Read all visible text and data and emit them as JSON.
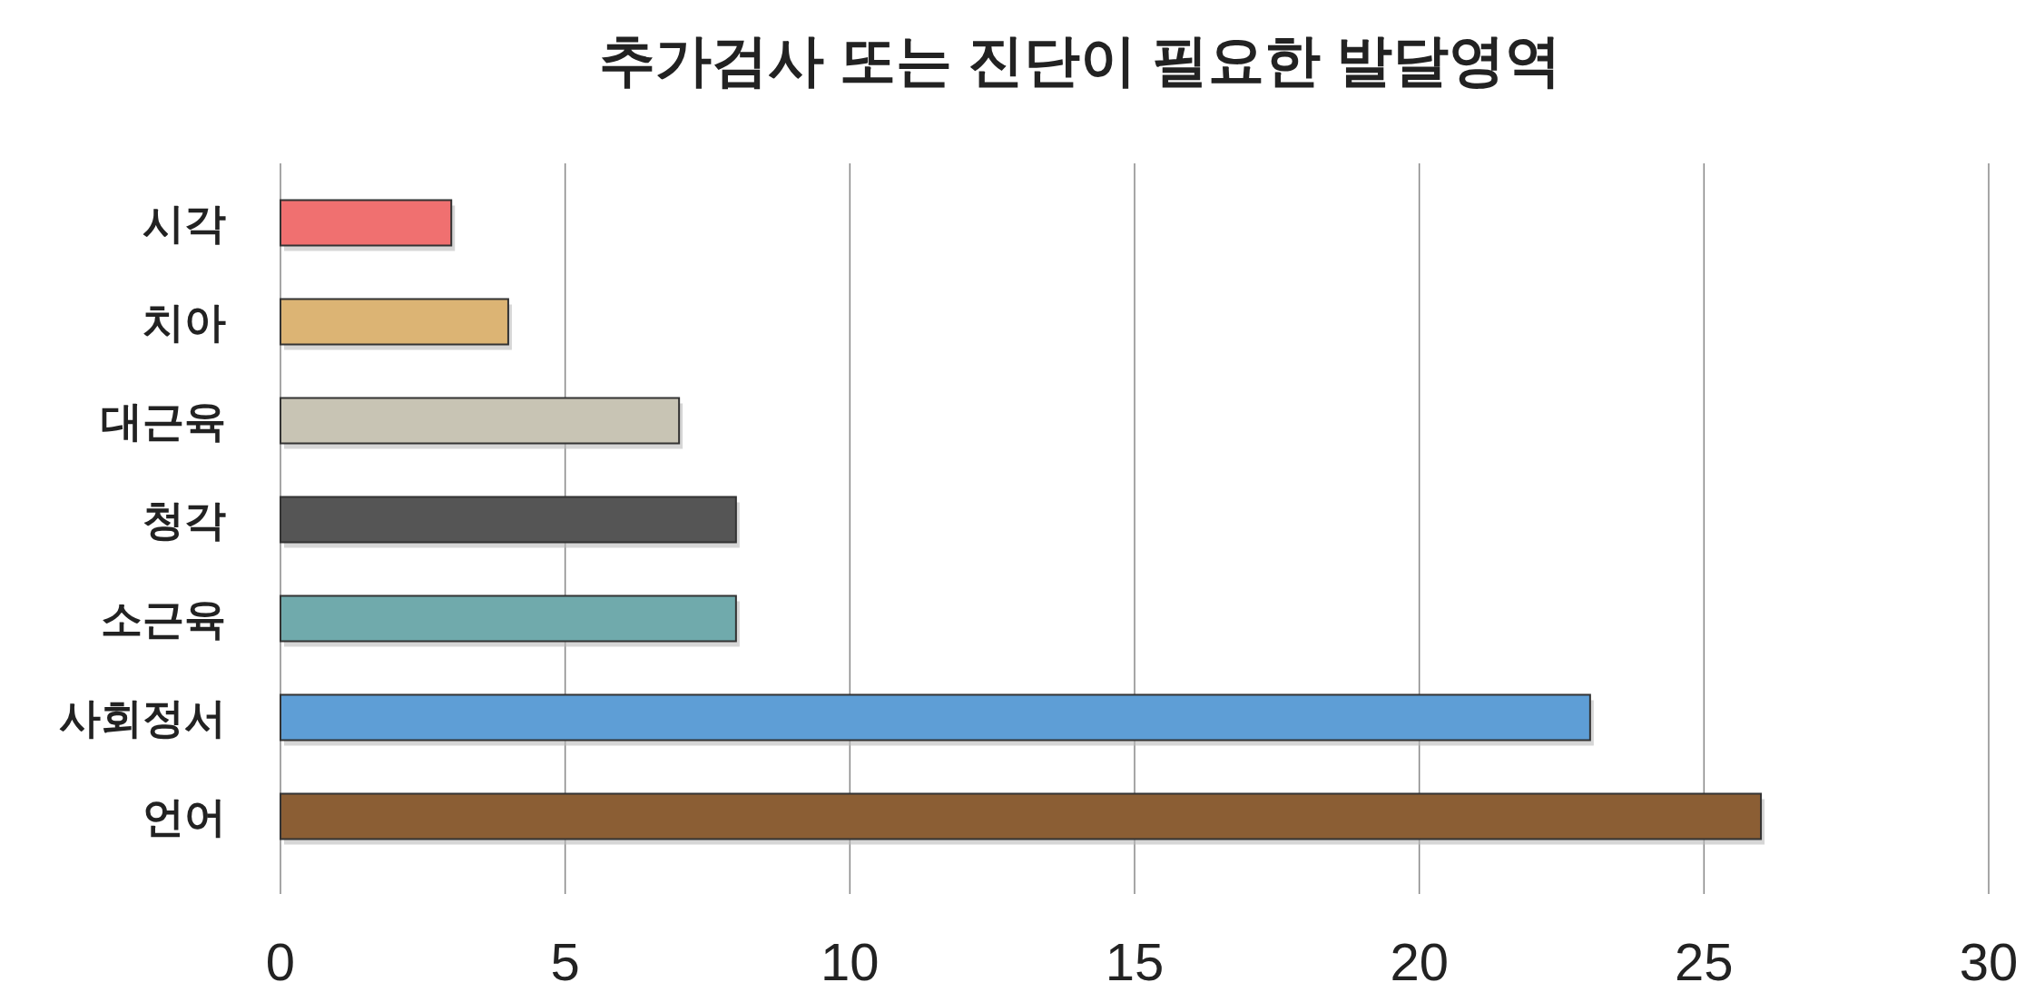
{
  "chart_data": {
    "type": "bar",
    "orientation": "horizontal",
    "title": "추가검사 또는 진단이 필요한 발달영역",
    "categories": [
      "시각",
      "치아",
      "대근육",
      "청각",
      "소근육",
      "사회정서",
      "언어"
    ],
    "values": [
      3,
      4,
      7,
      8,
      8,
      23,
      26
    ],
    "colors": [
      "#f07070",
      "#dcb474",
      "#c8c4b4",
      "#555555",
      "#70aaac",
      "#5e9ed6",
      "#8b5e34"
    ],
    "xlim": [
      0,
      30
    ],
    "xticks": [
      0,
      5,
      10,
      15,
      20,
      25,
      30
    ],
    "grid": "x"
  }
}
